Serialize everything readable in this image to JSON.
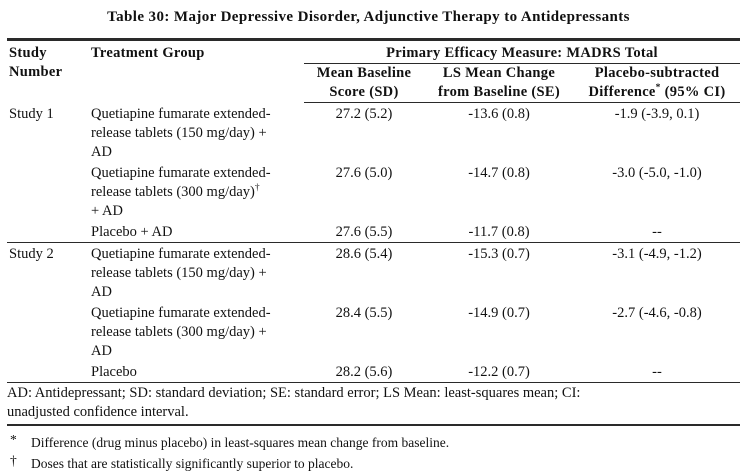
{
  "title": "Table 30: Major Depressive Disorder, Adjunctive Therapy to Antidepressants",
  "table": {
    "header": {
      "study_number": "Study\nNumber",
      "treatment_group": "Treatment Group",
      "primary_measure": "Primary Efficacy Measure: MADRS Total",
      "sub_columns": {
        "mean_baseline": "Mean Baseline\nScore (SD)",
        "ls_mean_change": "LS Mean Change\nfrom Baseline (SE)",
        "placebo_subtracted_pre": "Placebo-subtracted\nDifference",
        "placebo_subtracted_sup": "*",
        "placebo_subtracted_post": " (95% CI)"
      }
    },
    "rows": [
      {
        "study": "Study 1",
        "treatment": "Quetiapine fumarate extended-\nrelease tablets (150 mg/day) +\nAD",
        "mean_baseline": "27.2 (5.2)",
        "ls_mean_change": "-13.6 (0.8)",
        "placebo_subtracted": "-1.9 (-3.9, 0.1)"
      },
      {
        "study": "",
        "treatment_pre": "Quetiapine fumarate extended-\nrelease tablets (300 mg/day)",
        "treatment_sup": "†",
        "treatment_post": "\n+ AD",
        "mean_baseline": "27.6 (5.0)",
        "ls_mean_change": "-14.7 (0.8)",
        "placebo_subtracted": "-3.0 (-5.0, -1.0)"
      },
      {
        "study": "",
        "treatment": "Placebo + AD",
        "mean_baseline": "27.6 (5.5)",
        "ls_mean_change": "-11.7 (0.8)",
        "placebo_subtracted": "--"
      },
      {
        "study": "Study 2",
        "treatment": "Quetiapine fumarate extended-\nrelease tablets (150 mg/day) +\nAD",
        "mean_baseline": "28.6 (5.4)",
        "ls_mean_change": "-15.3 (0.7)",
        "placebo_subtracted": "-3.1 (-4.9, -1.2)"
      },
      {
        "study": "",
        "treatment": "Quetiapine fumarate extended-\nrelease tablets (300 mg/day) +\nAD",
        "mean_baseline": "28.4 (5.5)",
        "ls_mean_change": "-14.9 (0.7)",
        "placebo_subtracted": "-2.7 (-4.6, -0.8)"
      },
      {
        "study": "",
        "treatment": "Placebo",
        "mean_baseline": "28.2 (5.6)",
        "ls_mean_change": "-12.2 (0.7)",
        "placebo_subtracted": "--"
      }
    ],
    "abbreviations": "AD: Antidepressant; SD: standard deviation; SE: standard error; LS Mean: least-squares mean; CI:\nunadjusted confidence interval."
  },
  "footnotes": [
    {
      "marker": "*",
      "text": "Difference (drug minus placebo) in least-squares mean change from baseline."
    },
    {
      "marker": "†",
      "text": "Doses that are statistically significantly superior to placebo."
    }
  ]
}
